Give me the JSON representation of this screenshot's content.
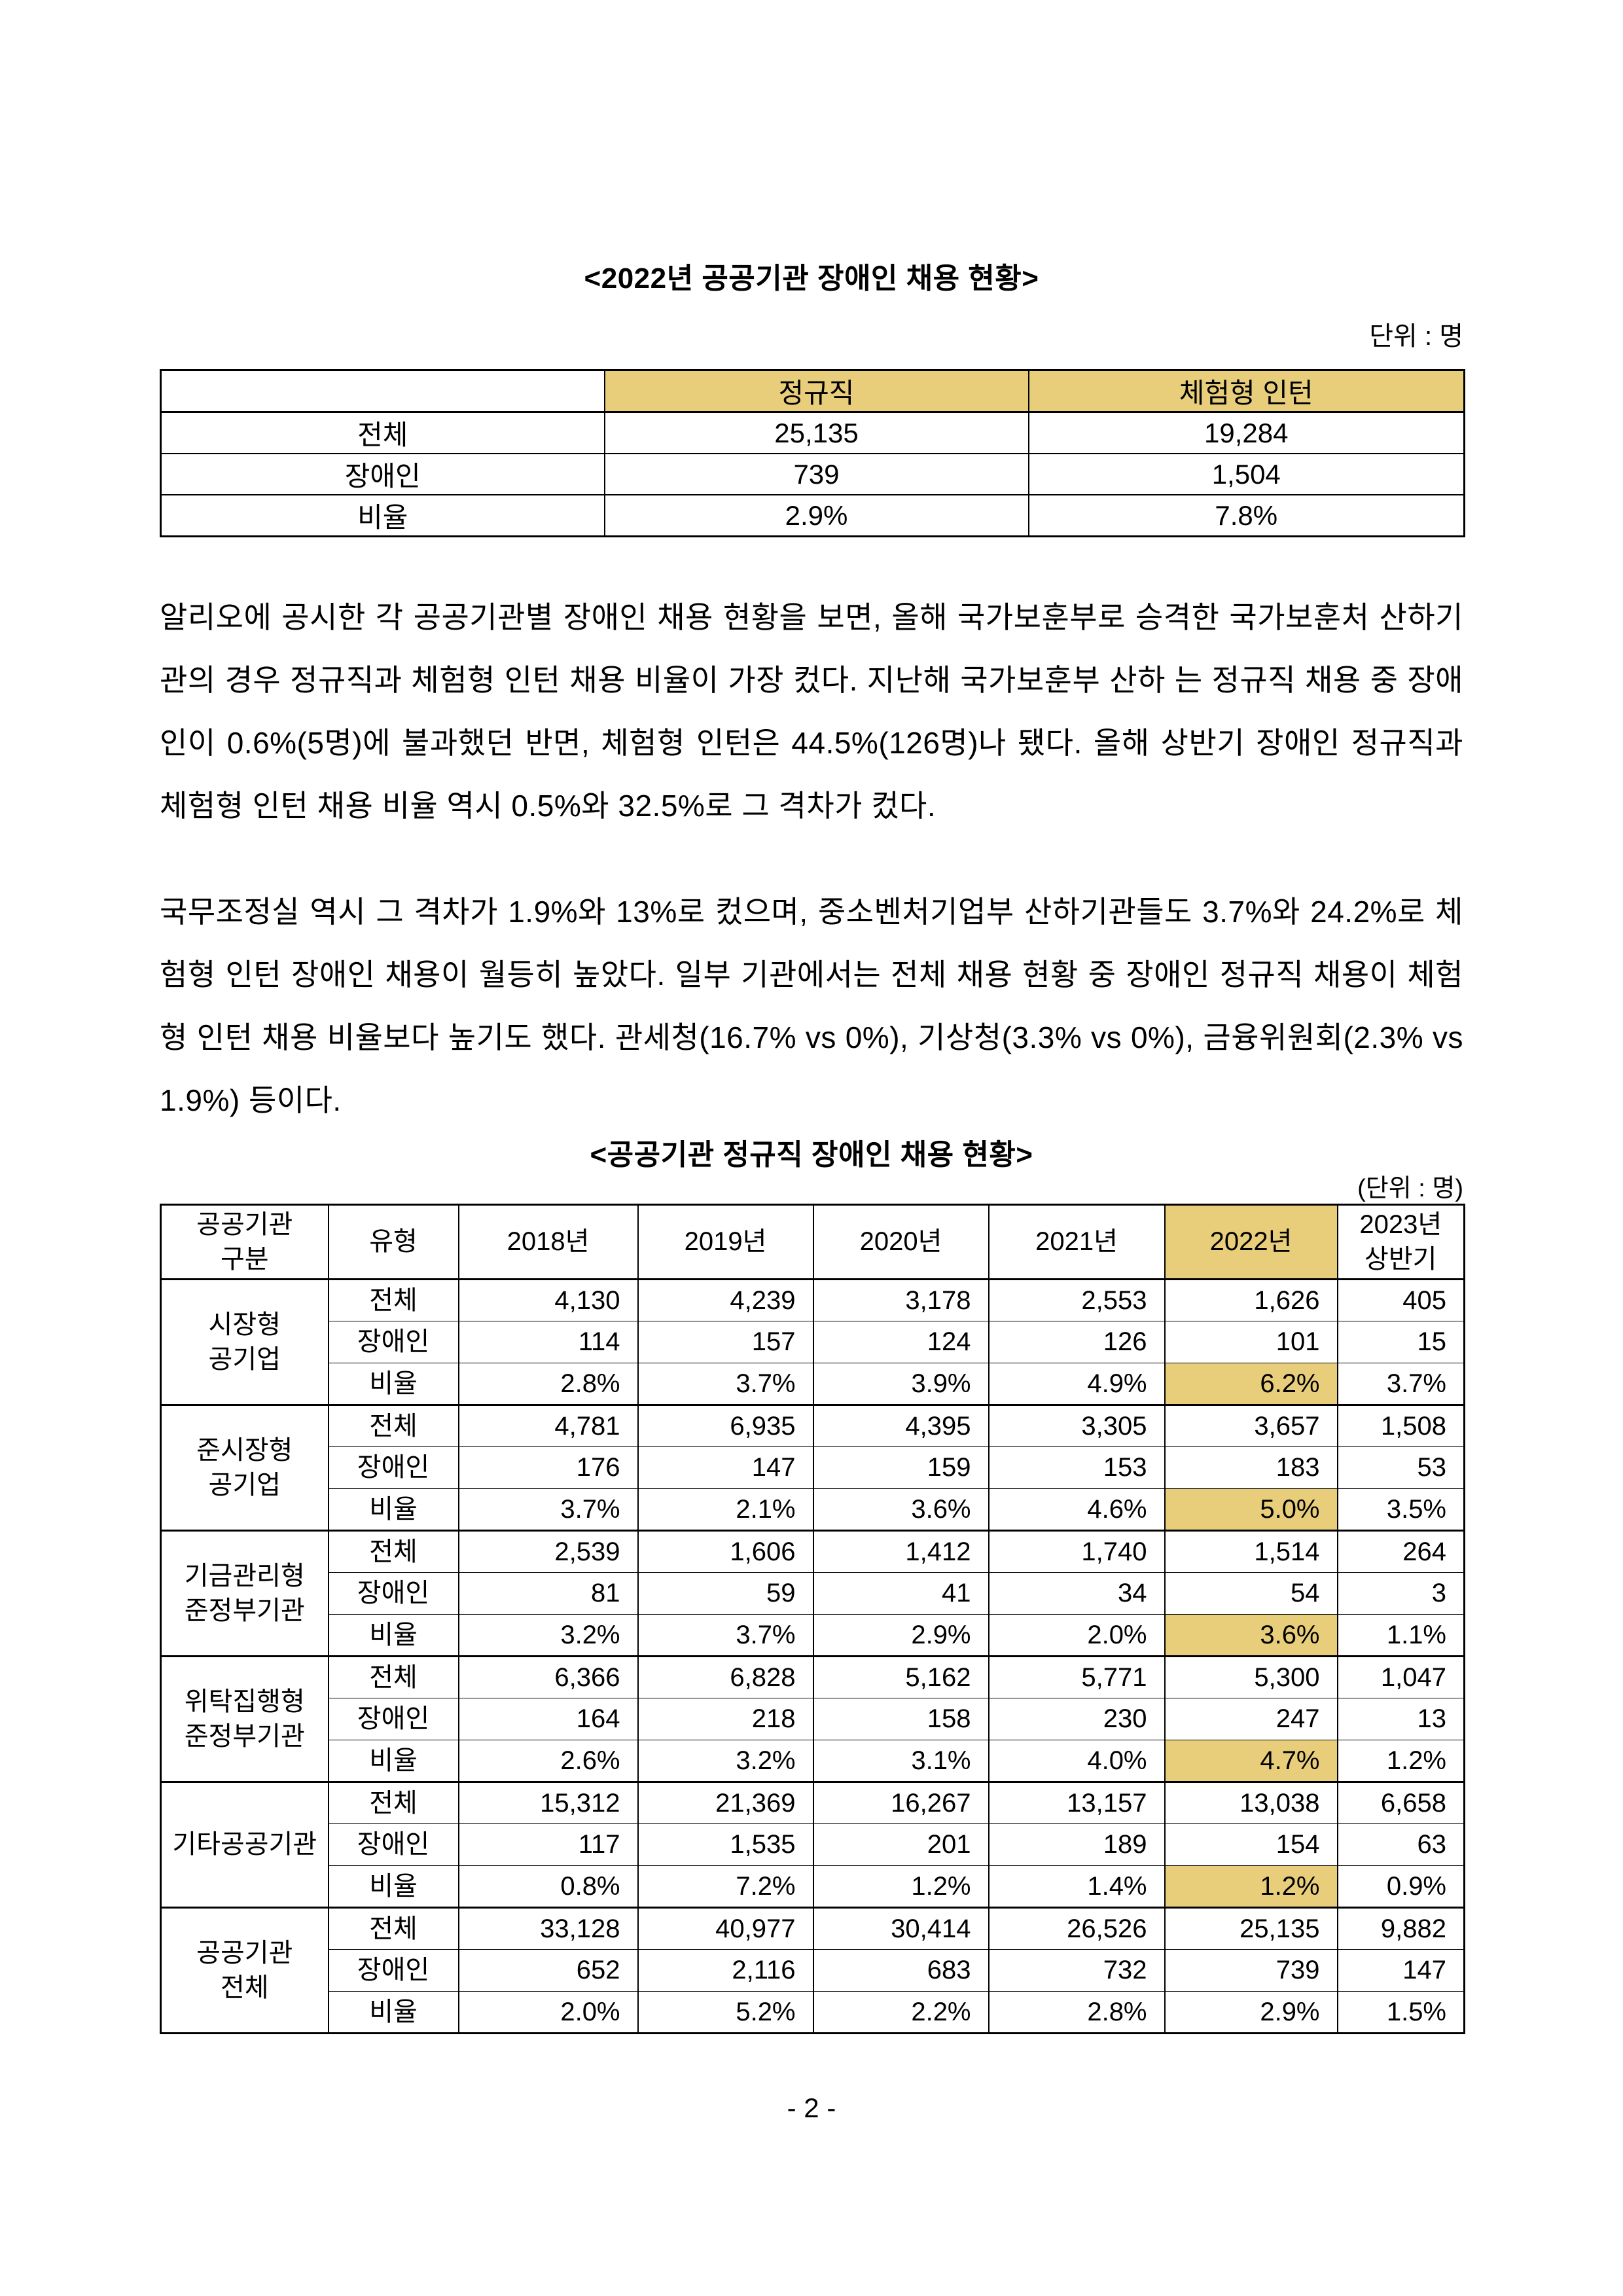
{
  "page": {
    "footer_label": "- 2 -",
    "highlight_color": "#E8CE7A"
  },
  "table1": {
    "title": "<2022년 공공기관 장애인 채용 현황>",
    "unit_label": "단위 : 명",
    "corner_label": "",
    "columns": [
      "정규직",
      "체험형 인턴"
    ],
    "rows": [
      {
        "label": "전체",
        "values": [
          "25,135",
          "19,284"
        ]
      },
      {
        "label": "장애인",
        "values": [
          "739",
          "1,504"
        ]
      },
      {
        "label": "비율",
        "values": [
          "2.9%",
          "7.8%"
        ]
      }
    ]
  },
  "paragraphs": [
    "알리오에 공시한 각 공공기관별 장애인 채용 현황을 보면, 올해 국가보훈부로 승격한 국가보훈처 산하기관의 경우 정규직과 체험형 인턴 채용 비율이 가장 컸다. 지난해 국가보훈부 산하 는 정규직 채용 중 장애인이 0.6%(5명)에 불과했던 반면, 체험형 인턴은 44.5%(126명)나 됐다. 올해 상반기 장애인 정규직과 체험형 인턴 채용 비율 역시 0.5%와 32.5%로 그 격차가 컸다.",
    "국무조정실 역시 그 격차가 1.9%와 13%로 컸으며, 중소벤처기업부 산하기관들도 3.7%와 24.2%로 체험형 인턴 장애인 채용이 월등히 높았다. 일부 기관에서는 전체 채용 현황 중 장애인 정규직 채용이 체험형 인턴 채용 비율보다 높기도 했다. 관세청(16.7% vs 0%), 기상청(3.3% vs 0%), 금융위원회(2.3% vs 1.9%) 등이다."
  ],
  "table2": {
    "title": "<공공기관 정규직 장애인 채용 현황>",
    "unit_label": "(단위 : 명)",
    "header": {
      "col0": "공공기관\n구분",
      "col1": "유형",
      "years": [
        "2018년",
        "2019년",
        "2020년",
        "2021년",
        "2022년",
        "2023년\n상반기"
      ]
    },
    "highlight_year_index": 4,
    "groups": [
      {
        "name": "시장형\n공기업",
        "rows": [
          {
            "label": "전체",
            "values": [
              "4,130",
              "4,239",
              "3,178",
              "2,553",
              "1,626",
              "405"
            ],
            "highlight_col": null
          },
          {
            "label": "장애인",
            "values": [
              "114",
              "157",
              "124",
              "126",
              "101",
              "15"
            ],
            "highlight_col": null
          },
          {
            "label": "비율",
            "values": [
              "2.8%",
              "3.7%",
              "3.9%",
              "4.9%",
              "6.2%",
              "3.7%"
            ],
            "highlight_col": 4
          }
        ]
      },
      {
        "name": "준시장형\n공기업",
        "rows": [
          {
            "label": "전체",
            "values": [
              "4,781",
              "6,935",
              "4,395",
              "3,305",
              "3,657",
              "1,508"
            ],
            "highlight_col": null
          },
          {
            "label": "장애인",
            "values": [
              "176",
              "147",
              "159",
              "153",
              "183",
              "53"
            ],
            "highlight_col": null
          },
          {
            "label": "비율",
            "values": [
              "3.7%",
              "2.1%",
              "3.6%",
              "4.6%",
              "5.0%",
              "3.5%"
            ],
            "highlight_col": 4
          }
        ]
      },
      {
        "name": "기금관리형\n준정부기관",
        "rows": [
          {
            "label": "전체",
            "values": [
              "2,539",
              "1,606",
              "1,412",
              "1,740",
              "1,514",
              "264"
            ],
            "highlight_col": null
          },
          {
            "label": "장애인",
            "values": [
              "81",
              "59",
              "41",
              "34",
              "54",
              "3"
            ],
            "highlight_col": null
          },
          {
            "label": "비율",
            "values": [
              "3.2%",
              "3.7%",
              "2.9%",
              "2.0%",
              "3.6%",
              "1.1%"
            ],
            "highlight_col": 4
          }
        ]
      },
      {
        "name": "위탁집행형\n준정부기관",
        "rows": [
          {
            "label": "전체",
            "values": [
              "6,366",
              "6,828",
              "5,162",
              "5,771",
              "5,300",
              "1,047"
            ],
            "highlight_col": null
          },
          {
            "label": "장애인",
            "values": [
              "164",
              "218",
              "158",
              "230",
              "247",
              "13"
            ],
            "highlight_col": null
          },
          {
            "label": "비율",
            "values": [
              "2.6%",
              "3.2%",
              "3.1%",
              "4.0%",
              "4.7%",
              "1.2%"
            ],
            "highlight_col": 4
          }
        ]
      },
      {
        "name": "기타공공기관",
        "rows": [
          {
            "label": "전체",
            "values": [
              "15,312",
              "21,369",
              "16,267",
              "13,157",
              "13,038",
              "6,658"
            ],
            "highlight_col": null
          },
          {
            "label": "장애인",
            "values": [
              "117",
              "1,535",
              "201",
              "189",
              "154",
              "63"
            ],
            "highlight_col": null
          },
          {
            "label": "비율",
            "values": [
              "0.8%",
              "7.2%",
              "1.2%",
              "1.4%",
              "1.2%",
              "0.9%"
            ],
            "highlight_col": 4
          }
        ]
      },
      {
        "name": "공공기관\n전체",
        "rows": [
          {
            "label": "전체",
            "values": [
              "33,128",
              "40,977",
              "30,414",
              "26,526",
              "25,135",
              "9,882"
            ],
            "highlight_col": null
          },
          {
            "label": "장애인",
            "values": [
              "652",
              "2,116",
              "683",
              "732",
              "739",
              "147"
            ],
            "highlight_col": null
          },
          {
            "label": "비율",
            "values": [
              "2.0%",
              "5.2%",
              "2.2%",
              "2.8%",
              "2.9%",
              "1.5%"
            ],
            "highlight_col": null
          }
        ]
      }
    ]
  }
}
